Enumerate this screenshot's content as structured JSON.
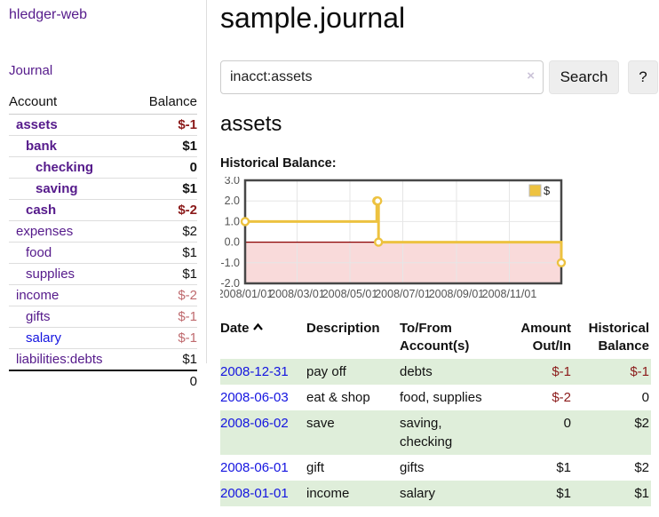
{
  "app_title": "hledger-web",
  "sidebar": {
    "journal_link": "Journal",
    "headers": {
      "account": "Account",
      "balance": "Balance"
    },
    "accounts": [
      {
        "name": "assets",
        "balance": "$-1",
        "name_class": "b link-purple ind-0",
        "bal_class": "b neg-strong"
      },
      {
        "name": "bank",
        "balance": "$1",
        "name_class": "b link-purple ind-1",
        "bal_class": "b"
      },
      {
        "name": "checking",
        "balance": "0",
        "name_class": "b link-purple ind-2",
        "bal_class": "b"
      },
      {
        "name": "saving",
        "balance": "$1",
        "name_class": "b link-purple ind-2",
        "bal_class": "b"
      },
      {
        "name": "cash",
        "balance": "$-2",
        "name_class": "b link-purple ind-1",
        "bal_class": "b neg-strong"
      },
      {
        "name": "expenses",
        "balance": "$2",
        "name_class": "link-purple ind-0",
        "bal_class": ""
      },
      {
        "name": "food",
        "balance": "$1",
        "name_class": "link-purple ind-1",
        "bal_class": ""
      },
      {
        "name": "supplies",
        "balance": "$1",
        "name_class": "link-purple ind-1",
        "bal_class": ""
      },
      {
        "name": "income",
        "balance": "$-2",
        "name_class": "link-purple ind-0",
        "bal_class": "neg-soft"
      },
      {
        "name": "gifts",
        "balance": "$-1",
        "name_class": "link-purple ind-1",
        "bal_class": "neg-soft"
      },
      {
        "name": "salary",
        "balance": "$-1",
        "name_class": "link-blue ind-1",
        "bal_class": "neg-soft"
      },
      {
        "name": "liabilities:debts",
        "balance": "$1",
        "name_class": "link-purple ind-0",
        "bal_class": ""
      }
    ],
    "total": "0"
  },
  "main": {
    "title": "sample.journal",
    "search": {
      "value": "inacct:assets",
      "clear": "×",
      "button": "Search",
      "help": "?"
    },
    "heading": "assets",
    "chart_title": "Historical Balance:",
    "register": {
      "headers": {
        "date": "Date",
        "sort_icon": "chevron-up",
        "description": "Description",
        "accounts": "To/From Account(s)",
        "amount": "Amount Out/In",
        "balance": "Historical Balance"
      },
      "rows": [
        {
          "date": "2008-12-31",
          "description": "pay off",
          "accounts": "debts",
          "amount": "$-1",
          "balance": "$-1",
          "amount_class": "neg-strong",
          "balance_class": "neg-strong"
        },
        {
          "date": "2008-06-03",
          "description": "eat & shop",
          "accounts": "food, supplies",
          "amount": "$-2",
          "balance": "0",
          "amount_class": "neg-strong",
          "balance_class": ""
        },
        {
          "date": "2008-06-02",
          "description": "save",
          "accounts": "saving, checking",
          "amount": "0",
          "balance": "$2",
          "amount_class": "",
          "balance_class": ""
        },
        {
          "date": "2008-06-01",
          "description": "gift",
          "accounts": "gifts",
          "amount": "$1",
          "balance": "$2",
          "amount_class": "",
          "balance_class": ""
        },
        {
          "date": "2008-01-01",
          "description": "income",
          "accounts": "salary",
          "amount": "$1",
          "balance": "$1",
          "amount_class": "",
          "balance_class": ""
        }
      ]
    }
  },
  "chart_data": {
    "type": "line",
    "style": "step-after",
    "title": "Historical Balance",
    "series": [
      {
        "name": "$",
        "color": "#EDC240",
        "points": [
          [
            "2008-01-01",
            1
          ],
          [
            "2008-06-01",
            2
          ],
          [
            "2008-06-02",
            2
          ],
          [
            "2008-06-03",
            0
          ],
          [
            "2008-12-31",
            -1
          ]
        ]
      }
    ],
    "xlim": [
      "2008-01-01",
      "2008-12-31"
    ],
    "ylim": [
      -2,
      3
    ],
    "yticks": [
      3.0,
      2.0,
      1.0,
      0.0,
      -1.0,
      -2.0
    ],
    "xtick_labels": [
      "2008/01/01",
      "2008/03/01",
      "2008/05/01",
      "2008/07/01",
      "2008/09/01",
      "2008/11/01"
    ],
    "legend_position": "top-right",
    "grid": true,
    "marker": "open-circle",
    "negative_region_color": "#F9DADA",
    "zero_line_color": "#8B0000",
    "plot_border_color": "#474747",
    "grid_color": "#E6E6E6",
    "tick_label_color": "#545454"
  }
}
